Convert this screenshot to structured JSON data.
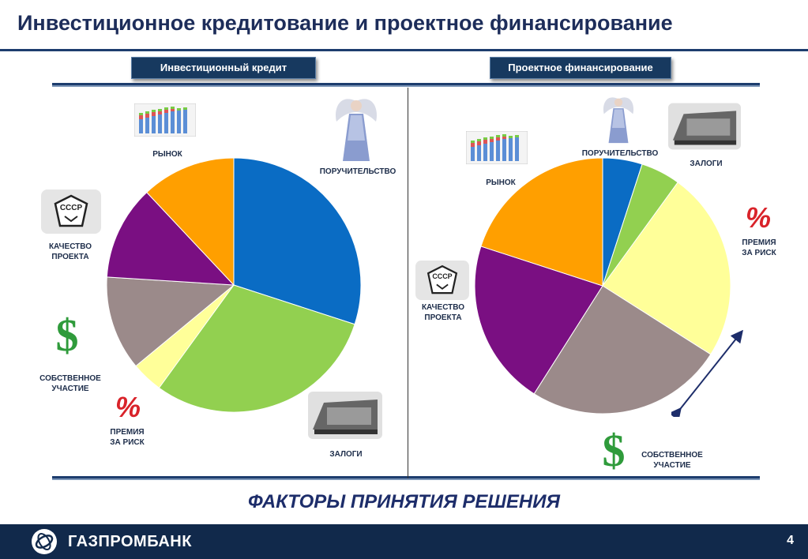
{
  "title": "Инвестиционное кредитование и проектное финансирование",
  "tabs": {
    "left": "Инвестиционный кредит",
    "right": "Проектное финансирование"
  },
  "footer_title": "ФАКТОРЫ ПРИНЯТИЯ РЕШЕНИЯ",
  "brand": "ГАЗПРОМБАНК",
  "page_number": "4",
  "labels_left": {
    "market": "РЫНОК",
    "guarantee": "ПОРУЧИТЕЛЬСТВО",
    "quality": "КАЧЕСТВО\nПРОЕКТА",
    "own": "СОБСТВЕННОЕ\nУЧАСТИЕ",
    "risk": "ПРЕМИЯ\nЗА РИСК",
    "collateral": "ЗАЛОГИ"
  },
  "labels_right": {
    "market": "РЫНОК",
    "guarantee": "ПОРУЧИТЕЛЬСТВО",
    "collateral": "ЗАЛОГИ",
    "risk": "ПРЕМИЯ\nЗА РИСК",
    "quality": "КАЧЕСТВО\nПРОЕКТА",
    "own": "СОБСТВЕННОЕ\nУЧАСТИЕ"
  },
  "icons": {
    "percent": "%",
    "dollar": "$",
    "ussr": "СССР"
  },
  "colors": {
    "blue": "#0a6cc4",
    "green": "#92d050",
    "yellow": "#ffff99",
    "gray": "#9b8a8a",
    "purple": "#7a0f82",
    "orange": "#ff9f00",
    "navy": "#11294b"
  },
  "chart_data": [
    {
      "type": "pie",
      "slices": [
        {
          "value": 30,
          "color": "#0a6cc4"
        },
        {
          "value": 30,
          "color": "#92d050"
        },
        {
          "value": 4,
          "color": "#ffff99"
        },
        {
          "value": 12,
          "color": "#9b8a8a"
        },
        {
          "value": 12,
          "color": "#7a0f82"
        },
        {
          "value": 12,
          "color": "#ff9f00"
        }
      ]
    },
    {
      "type": "pie",
      "slices": [
        {
          "value": 5,
          "color": "#0a6cc4"
        },
        {
          "value": 5,
          "color": "#92d050"
        },
        {
          "value": 24,
          "color": "#ffff99"
        },
        {
          "value": 25,
          "color": "#9b8a8a"
        },
        {
          "value": 21,
          "color": "#7a0f82"
        },
        {
          "value": 20,
          "color": "#ff9f00"
        }
      ]
    }
  ]
}
